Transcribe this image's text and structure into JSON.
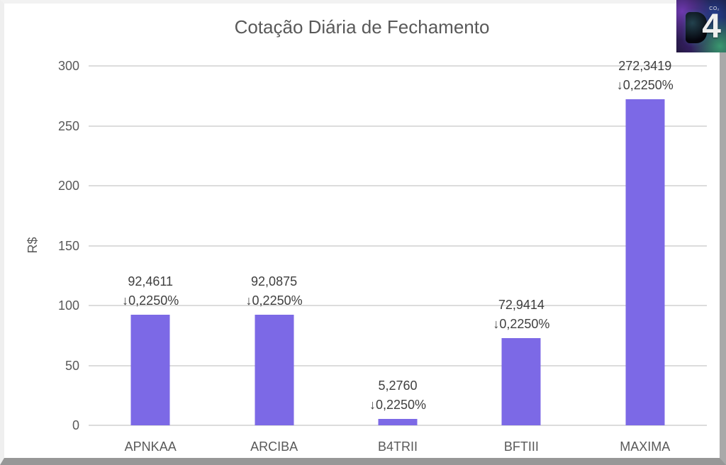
{
  "header": {
    "title": "Cotação Diária de Fechamento"
  },
  "logo": {
    "numeral": "4",
    "co2": "CO₂"
  },
  "chart_data": {
    "type": "bar",
    "title": "Cotação Diária de Fechamento",
    "categories": [
      "APNKAA",
      "ARCIBA",
      "B4TRII",
      "BFTIII",
      "MAXIMA"
    ],
    "values": [
      92.4611,
      92.0875,
      5.276,
      72.9414,
      272.3419
    ],
    "value_labels": [
      "92,4611",
      "92,0875",
      "5,2760",
      "72,9414",
      "272,3419"
    ],
    "change_labels": [
      "↓0,2250%",
      "↓0,2250%",
      "↓0,2250%",
      "↓0,2250%",
      "↓0,2250%"
    ],
    "xlabel": "",
    "ylabel": "R$",
    "ylim": [
      0,
      300
    ],
    "yticks": [
      0,
      50,
      100,
      150,
      200,
      250,
      300
    ],
    "ytick_labels": [
      "0",
      "50",
      "100",
      "150",
      "200",
      "250",
      "300"
    ],
    "grid": true,
    "legend": "none",
    "bar_color": "#7C69E6",
    "gridline_color": "#DCDCDC",
    "label_color": "#3F3F3F",
    "axis_text_color": "#595959"
  }
}
